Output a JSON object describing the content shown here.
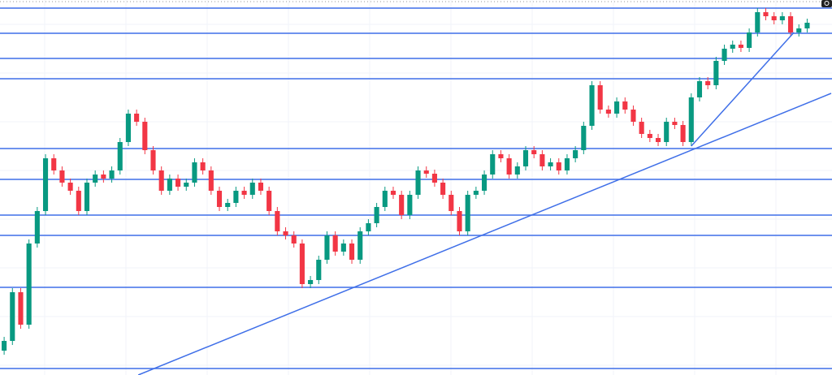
{
  "chart_data": {
    "type": "candlestick",
    "up_color": "#089981",
    "down_color": "#f23645",
    "line_color": "#3f6fe8",
    "grid": true,
    "xlim": [
      -0.5,
      100
    ],
    "ylim": [
      0,
      462
    ],
    "ohlc": [
      [
        30,
        47,
        25,
        42
      ],
      [
        42,
        107,
        37,
        102
      ],
      [
        102,
        107,
        57,
        62
      ],
      [
        62,
        167,
        57,
        162
      ],
      [
        162,
        207,
        157,
        202
      ],
      [
        202,
        272,
        197,
        267
      ],
      [
        267,
        272,
        247,
        252
      ],
      [
        252,
        257,
        232,
        237
      ],
      [
        237,
        242,
        222,
        227
      ],
      [
        227,
        232,
        197,
        202
      ],
      [
        202,
        242,
        197,
        237
      ],
      [
        237,
        252,
        232,
        247
      ],
      [
        247,
        252,
        237,
        242
      ],
      [
        242,
        257,
        237,
        252
      ],
      [
        252,
        292,
        247,
        287
      ],
      [
        287,
        327,
        282,
        322
      ],
      [
        322,
        327,
        307,
        312
      ],
      [
        312,
        317,
        272,
        277
      ],
      [
        277,
        282,
        247,
        252
      ],
      [
        252,
        257,
        222,
        227
      ],
      [
        227,
        247,
        222,
        242
      ],
      [
        242,
        247,
        227,
        232
      ],
      [
        232,
        242,
        227,
        237
      ],
      [
        237,
        267,
        232,
        262
      ],
      [
        262,
        267,
        247,
        252
      ],
      [
        252,
        257,
        222,
        227
      ],
      [
        227,
        232,
        202,
        207
      ],
      [
        207,
        217,
        202,
        212
      ],
      [
        212,
        232,
        207,
        227
      ],
      [
        227,
        232,
        217,
        222
      ],
      [
        222,
        242,
        217,
        237
      ],
      [
        237,
        242,
        222,
        227
      ],
      [
        227,
        232,
        197,
        202
      ],
      [
        202,
        207,
        172,
        177
      ],
      [
        177,
        182,
        167,
        172
      ],
      [
        172,
        177,
        157,
        162
      ],
      [
        162,
        167,
        107,
        112
      ],
      [
        112,
        122,
        107,
        117
      ],
      [
        117,
        147,
        112,
        142
      ],
      [
        142,
        177,
        137,
        172
      ],
      [
        172,
        177,
        147,
        152
      ],
      [
        152,
        167,
        147,
        162
      ],
      [
        162,
        167,
        137,
        142
      ],
      [
        142,
        182,
        137,
        177
      ],
      [
        177,
        192,
        172,
        187
      ],
      [
        187,
        212,
        182,
        207
      ],
      [
        207,
        232,
        202,
        227
      ],
      [
        227,
        232,
        217,
        222
      ],
      [
        222,
        227,
        192,
        197
      ],
      [
        197,
        227,
        192,
        222
      ],
      [
        222,
        257,
        217,
        252
      ],
      [
        252,
        257,
        243,
        248
      ],
      [
        248,
        253,
        232,
        237
      ],
      [
        237,
        242,
        217,
        222
      ],
      [
        222,
        227,
        197,
        202
      ],
      [
        202,
        207,
        172,
        177
      ],
      [
        177,
        227,
        172,
        222
      ],
      [
        222,
        232,
        217,
        227
      ],
      [
        227,
        252,
        222,
        247
      ],
      [
        247,
        277,
        242,
        272
      ],
      [
        272,
        277,
        262,
        267
      ],
      [
        267,
        272,
        242,
        247
      ],
      [
        247,
        262,
        242,
        257
      ],
      [
        257,
        282,
        252,
        277
      ],
      [
        277,
        282,
        267,
        272
      ],
      [
        272,
        277,
        252,
        257
      ],
      [
        257,
        267,
        252,
        262
      ],
      [
        262,
        267,
        247,
        252
      ],
      [
        252,
        272,
        247,
        267
      ],
      [
        267,
        282,
        262,
        277
      ],
      [
        277,
        312,
        272,
        307
      ],
      [
        307,
        362,
        302,
        357
      ],
      [
        357,
        362,
        322,
        327
      ],
      [
        327,
        332,
        317,
        322
      ],
      [
        322,
        342,
        317,
        337
      ],
      [
        337,
        342,
        322,
        327
      ],
      [
        327,
        332,
        307,
        312
      ],
      [
        312,
        317,
        292,
        297
      ],
      [
        297,
        302,
        287,
        292
      ],
      [
        292,
        297,
        282,
        287
      ],
      [
        287,
        317,
        282,
        312
      ],
      [
        312,
        317,
        303,
        308
      ],
      [
        308,
        313,
        282,
        287
      ],
      [
        287,
        347,
        282,
        342
      ],
      [
        342,
        367,
        337,
        362
      ],
      [
        362,
        367,
        352,
        357
      ],
      [
        357,
        392,
        352,
        387
      ],
      [
        387,
        407,
        382,
        402
      ],
      [
        402,
        412,
        397,
        407
      ],
      [
        407,
        412,
        398,
        403
      ],
      [
        403,
        427,
        398,
        422
      ],
      [
        422,
        452,
        417,
        447
      ],
      [
        447,
        452,
        437,
        442
      ],
      [
        442,
        447,
        432,
        437
      ],
      [
        437,
        447,
        432,
        442
      ],
      [
        442,
        447,
        417,
        422
      ],
      [
        422,
        432,
        417,
        427
      ],
      [
        427,
        439,
        422,
        434
      ]
    ],
    "levels": [
      452,
      421,
      390,
      365,
      279,
      241,
      197,
      172,
      108,
      8
    ],
    "trendlines": [
      {
        "from": [
          16.2,
          0
        ],
        "to": [
          99.9,
          347
        ]
      },
      {
        "from": [
          83,
          282
        ],
        "to": [
          95.4,
          422
        ]
      }
    ]
  }
}
